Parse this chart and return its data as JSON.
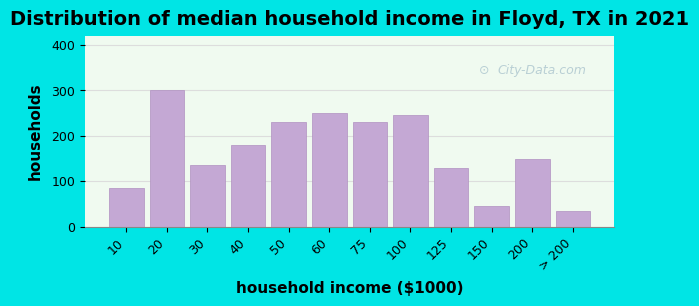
{
  "title": "Distribution of median household income in Floyd, TX in 2021",
  "xlabel": "household income ($1000)",
  "ylabel": "households",
  "categories": [
    "10",
    "20",
    "30",
    "40",
    "50",
    "60",
    "75",
    "100",
    "125",
    "150",
    "200",
    "> 200"
  ],
  "values": [
    85,
    300,
    135,
    180,
    230,
    250,
    230,
    245,
    130,
    45,
    150,
    35
  ],
  "bar_color": "#C4A8D4",
  "bar_edge_color": "#B090C0",
  "background_outer": "#00E5E5",
  "background_inner": "#F0FAF0",
  "ylim": [
    0,
    420
  ],
  "yticks": [
    0,
    100,
    200,
    300,
    400
  ],
  "title_fontsize": 14,
  "axis_label_fontsize": 11,
  "tick_fontsize": 9,
  "watermark_text": "City-Data.com",
  "watermark_color": "#B0C8D0",
  "grid_color": "#DDDDDD"
}
